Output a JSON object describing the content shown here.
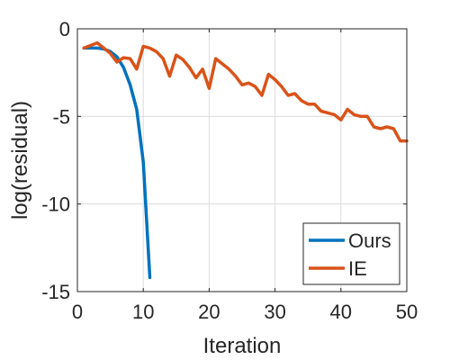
{
  "chart_data": {
    "type": "line",
    "title": "",
    "xlabel": "Iteration",
    "ylabel": "log(residual)",
    "xlim": [
      0,
      50
    ],
    "ylim": [
      -15,
      0
    ],
    "xticks": [
      0,
      10,
      20,
      30,
      40,
      50
    ],
    "yticks": [
      0,
      -5,
      -10,
      -15
    ],
    "xtick_labels": [
      "0",
      "10",
      "20",
      "30",
      "40",
      "50"
    ],
    "ytick_labels": [
      "0",
      "-5",
      "-10",
      "-15"
    ],
    "grid": true,
    "legend_position": "bottom-right",
    "series": [
      {
        "name": "Ours",
        "color": "#0072BD",
        "x": [
          1,
          2,
          3,
          4,
          5,
          6,
          7,
          8,
          9,
          10,
          11
        ],
        "y": [
          -1.1,
          -1.1,
          -1.1,
          -1.15,
          -1.3,
          -1.6,
          -2.2,
          -3.2,
          -4.6,
          -7.6,
          -14.2
        ]
      },
      {
        "name": "IE",
        "color": "#D95319",
        "x": [
          1,
          2,
          3,
          4,
          5,
          6,
          7,
          8,
          9,
          10,
          11,
          12,
          13,
          14,
          15,
          16,
          17,
          18,
          19,
          20,
          21,
          22,
          23,
          24,
          25,
          26,
          27,
          28,
          29,
          30,
          31,
          32,
          33,
          34,
          35,
          36,
          37,
          38,
          39,
          40,
          41,
          42,
          43,
          44,
          45,
          46,
          47,
          48,
          49,
          50
        ],
        "y": [
          -1.1,
          -0.95,
          -0.8,
          -1.1,
          -1.4,
          -1.9,
          -1.65,
          -1.7,
          -2.3,
          -1.0,
          -1.1,
          -1.3,
          -1.7,
          -2.7,
          -1.5,
          -1.75,
          -2.2,
          -2.8,
          -2.3,
          -3.4,
          -1.7,
          -2.0,
          -2.3,
          -2.7,
          -3.2,
          -3.1,
          -3.3,
          -3.8,
          -2.6,
          -2.9,
          -3.3,
          -3.8,
          -3.7,
          -4.1,
          -4.3,
          -4.3,
          -4.7,
          -4.8,
          -4.9,
          -5.2,
          -4.6,
          -4.9,
          -5.0,
          -5.0,
          -5.6,
          -5.7,
          -5.6,
          -5.7,
          -6.4,
          -6.4
        ]
      }
    ]
  }
}
